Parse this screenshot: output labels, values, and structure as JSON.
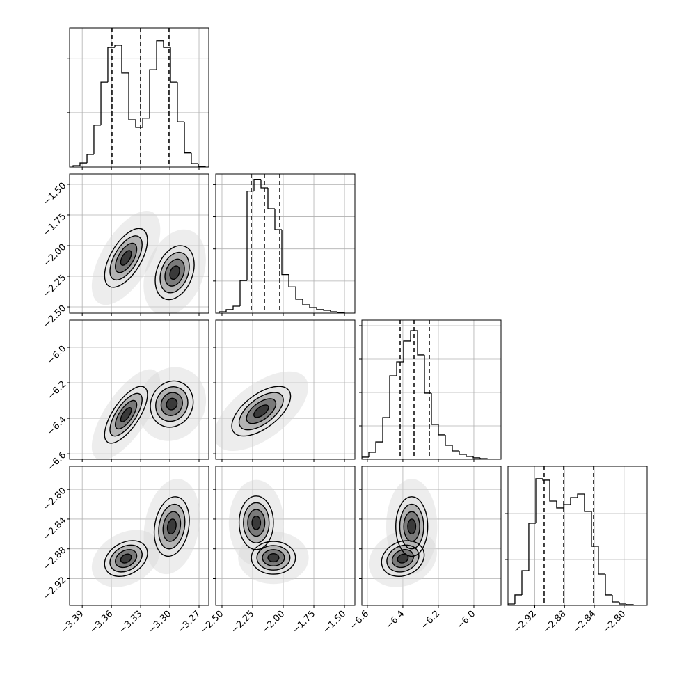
{
  "chart_data": [
    {
      "type": "histogram",
      "color": "#000000",
      "grid": true,
      "bins": [
        -3.3994,
        -3.3923,
        -3.3851,
        -3.378,
        -3.3708,
        -3.3637,
        -3.3565,
        -3.3494,
        -3.3422,
        -3.3351,
        -3.3279,
        -3.3208,
        -3.3136,
        -3.3065,
        -3.2993,
        -3.2922,
        -3.285,
        -3.2779,
        -3.2707,
        -3.2636
      ],
      "values": [
        13,
        38,
        115,
        385,
        780,
        1100,
        1120,
        865,
        435,
        365,
        450,
        895,
        1160,
        1100,
        780,
        415,
        130,
        32,
        6
      ],
      "quantiles": [
        -3.3594,
        -3.3301,
        -3.3008
      ],
      "xlim": [
        -3.403,
        -3.26
      ],
      "xticks": [
        -3.39,
        -3.36,
        -3.33,
        -3.3,
        -3.27
      ],
      "ylim": [
        0,
        1280
      ],
      "yticks": [
        500,
        1000
      ]
    },
    {
      "type": "contour",
      "grid": true,
      "levels": [
        0.5,
        1,
        1.5,
        2
      ],
      "fills": [
        "#3a3a3a",
        "#7a7a7a",
        "#b4b4b4",
        "#e4e4e4"
      ],
      "line_color": "#000000",
      "xlim": [
        -3.403,
        -3.26
      ],
      "xticks": [
        -3.39,
        -3.36,
        -3.33,
        -3.3,
        -3.27
      ],
      "ylim": [
        -2.551,
        -1.415
      ],
      "yticks": [
        {
          "value": -1.5,
          "label": "−1.50"
        },
        {
          "value": -1.75,
          "label": "−1.75"
        },
        {
          "value": -2.0,
          "label": "−2.00"
        },
        {
          "value": -2.25,
          "label": "−2.25"
        },
        {
          "value": -2.5,
          "label": "−2.50"
        }
      ],
      "blobs": [
        {
          "x": -3.345,
          "y": -2.1,
          "sx": 0.011,
          "sy": 0.12,
          "rho": 0.6
        },
        {
          "x": -3.295,
          "y": -2.22,
          "sx": 0.01,
          "sy": 0.11,
          "rho": 0.3
        }
      ]
    },
    {
      "type": "histogram",
      "color": "#000000",
      "grid": true,
      "bins": [
        -2.5226,
        -2.4658,
        -2.409,
        -2.3522,
        -2.2954,
        -2.2386,
        -2.1818,
        -2.125,
        -2.0682,
        -2.0114,
        -1.9546,
        -1.8978,
        -1.841,
        -1.7842,
        -1.7274,
        -1.6706,
        -1.6138,
        -1.557,
        -1.5002
      ],
      "values": [
        13,
        33,
        65,
        305,
        1140,
        1250,
        1170,
        975,
        780,
        360,
        245,
        130,
        78,
        52,
        33,
        26,
        13,
        6
      ],
      "quantiles": [
        -2.2613,
        -2.1534,
        -2.0284
      ],
      "xlim": [
        -2.551,
        -1.415
      ],
      "xticks": [
        -2.5,
        -2.25,
        -2.0,
        -1.75,
        -1.5
      ],
      "ylim": [
        0,
        1300
      ],
      "yticks": [
        300,
        600,
        900,
        1200
      ]
    },
    {
      "type": "contour",
      "grid": true,
      "levels": [
        0.5,
        1,
        1.5,
        2
      ],
      "fills": [
        "#3a3a3a",
        "#7a7a7a",
        "#b4b4b4",
        "#e4e4e4"
      ],
      "line_color": "#000000",
      "xlim": [
        -3.403,
        -3.26
      ],
      "xticks": [
        -3.39,
        -3.36,
        -3.33,
        -3.3,
        -3.27
      ],
      "ylim": [
        -6.631,
        -5.847
      ],
      "yticks": [
        {
          "value": -6.0,
          "label": "−6.0"
        },
        {
          "value": -6.2,
          "label": "−6.2"
        },
        {
          "value": -6.4,
          "label": "−6.4"
        },
        {
          "value": -6.6,
          "label": "−6.6"
        }
      ],
      "blobs": [
        {
          "x": -3.345,
          "y": -6.38,
          "sx": 0.011,
          "sy": 0.08,
          "rho": 0.7
        },
        {
          "x": -3.298,
          "y": -6.32,
          "sx": 0.011,
          "sy": 0.065,
          "rho": 0.1
        }
      ]
    },
    {
      "type": "contour",
      "grid": true,
      "levels": [
        0.5,
        1,
        1.5,
        2
      ],
      "fills": [
        "#3a3a3a",
        "#7a7a7a",
        "#b4b4b4",
        "#e4e4e4"
      ],
      "line_color": "#000000",
      "xlim": [
        -2.551,
        -1.415
      ],
      "xticks": [
        -2.5,
        -2.25,
        -2.0,
        -1.75,
        -1.5
      ],
      "ylim": [
        -6.631,
        -5.847
      ],
      "yticks": [
        -6.0,
        -6.2,
        -6.4,
        -6.6
      ],
      "blobs": [
        {
          "x": -2.18,
          "y": -6.36,
          "sx": 0.12,
          "sy": 0.07,
          "rho": 0.6
        }
      ]
    },
    {
      "type": "histogram",
      "color": "#000000",
      "grid": true,
      "bins": [
        -6.631,
        -6.5918,
        -6.5526,
        -6.5134,
        -6.4742,
        -6.435,
        -6.3958,
        -6.3566,
        -6.3174,
        -6.2782,
        -6.239,
        -6.1998,
        -6.1606,
        -6.1214,
        -6.0822,
        -6.043,
        -6.0038,
        -5.9646,
        -5.9254
      ],
      "values": [
        19,
        63,
        156,
        375,
        750,
        875,
        1063,
        1156,
        938,
        594,
        313,
        219,
        125,
        75,
        44,
        25,
        13,
        6
      ],
      "quantiles": [
        -6.4154,
        -6.337,
        -6.2508
      ],
      "xlim": [
        -6.631,
        -5.847
      ],
      "xticks": [
        -6.6,
        -6.4,
        -6.2,
        -6.0
      ],
      "ylim": [
        0,
        1250
      ],
      "yticks": [
        300,
        600,
        900,
        1200
      ]
    },
    {
      "type": "contour",
      "grid": true,
      "levels": [
        0.5,
        1,
        1.5,
        2
      ],
      "fills": [
        "#3a3a3a",
        "#7a7a7a",
        "#b4b4b4",
        "#e4e4e4"
      ],
      "line_color": "#000000",
      "xlim": [
        -3.403,
        -3.26
      ],
      "xticks": [
        {
          "value": -3.39,
          "label": "−3.39"
        },
        {
          "value": -3.36,
          "label": "−3.36"
        },
        {
          "value": -3.33,
          "label": "−3.33"
        },
        {
          "value": -3.3,
          "label": "−3.30"
        },
        {
          "value": -3.27,
          "label": "−3.27"
        }
      ],
      "ylim": [
        -2.956,
        -2.769
      ],
      "yticks": [
        {
          "value": -2.8,
          "label": "−2.80"
        },
        {
          "value": -2.84,
          "label": "−2.84"
        },
        {
          "value": -2.88,
          "label": "−2.88"
        },
        {
          "value": -2.92,
          "label": "−2.92"
        }
      ],
      "blobs": [
        {
          "x": -3.345,
          "y": -2.893,
          "sx": 0.011,
          "sy": 0.012,
          "rho": 0.3
        },
        {
          "x": -3.298,
          "y": -2.85,
          "sx": 0.009,
          "sy": 0.02,
          "rho": 0.2
        }
      ]
    },
    {
      "type": "contour",
      "grid": true,
      "levels": [
        0.5,
        1,
        1.5,
        2
      ],
      "fills": [
        "#3a3a3a",
        "#7a7a7a",
        "#b4b4b4",
        "#e4e4e4"
      ],
      "line_color": "#000000",
      "xlim": [
        -2.551,
        -1.415
      ],
      "xticks": [
        {
          "value": -2.5,
          "label": "−2.50"
        },
        {
          "value": -2.25,
          "label": "−2.25"
        },
        {
          "value": -2.0,
          "label": "−2.00"
        },
        {
          "value": -1.75,
          "label": "−1.75"
        },
        {
          "value": -1.5,
          "label": "−1.50"
        }
      ],
      "ylim": [
        -2.956,
        -2.769
      ],
      "yticks": [
        -2.8,
        -2.84,
        -2.88,
        -2.92
      ],
      "blobs": [
        {
          "x": -2.22,
          "y": -2.845,
          "sx": 0.07,
          "sy": 0.018,
          "rho": 0.0
        },
        {
          "x": -2.08,
          "y": -2.892,
          "sx": 0.09,
          "sy": 0.011,
          "rho": 0.0
        }
      ]
    },
    {
      "type": "contour",
      "grid": true,
      "levels": [
        0.5,
        1,
        1.5,
        2
      ],
      "fills": [
        "#3a3a3a",
        "#7a7a7a",
        "#b4b4b4",
        "#e4e4e4"
      ],
      "line_color": "#000000",
      "xlim": [
        -6.631,
        -5.847
      ],
      "xticks": [
        {
          "value": -6.6,
          "label": "−6.6"
        },
        {
          "value": -6.4,
          "label": "−6.4"
        },
        {
          "value": -6.2,
          "label": "−6.2"
        },
        {
          "value": -6.0,
          "label": "−6.0"
        }
      ],
      "ylim": [
        -2.956,
        -2.769
      ],
      "yticks": [
        -2.8,
        -2.84,
        -2.88,
        -2.92
      ],
      "blobs": [
        {
          "x": -6.35,
          "y": -2.85,
          "sx": 0.045,
          "sy": 0.02,
          "rho": 0.0
        },
        {
          "x": -6.4,
          "y": -2.893,
          "sx": 0.06,
          "sy": 0.012,
          "rho": 0.2
        }
      ]
    },
    {
      "type": "histogram",
      "color": "#000000",
      "grid": true,
      "bins": [
        -2.956,
        -2.9467,
        -2.9373,
        -2.928,
        -2.9186,
        -2.9093,
        -2.8999,
        -2.8906,
        -2.8812,
        -2.8719,
        -2.8625,
        -2.8532,
        -2.8438,
        -2.8345,
        -2.8251,
        -2.8158,
        -2.8064,
        -2.7971,
        -2.7877
      ],
      "values": [
        15,
        114,
        379,
        894,
        1379,
        1364,
        1136,
        1061,
        1098,
        1174,
        1212,
        1023,
        644,
        341,
        114,
        38,
        15,
        8
      ],
      "quantiles": [
        -2.9074,
        -2.8812,
        -2.841
      ],
      "xlim": [
        -2.956,
        -2.769
      ],
      "xticks": [
        {
          "value": -2.92,
          "label": "−2.92"
        },
        {
          "value": -2.88,
          "label": "−2.88"
        },
        {
          "value": -2.84,
          "label": "−2.84"
        },
        {
          "value": -2.8,
          "label": "−2.80"
        }
      ],
      "ylim": [
        0,
        1515
      ],
      "yticks": [
        500,
        1000
      ]
    }
  ]
}
